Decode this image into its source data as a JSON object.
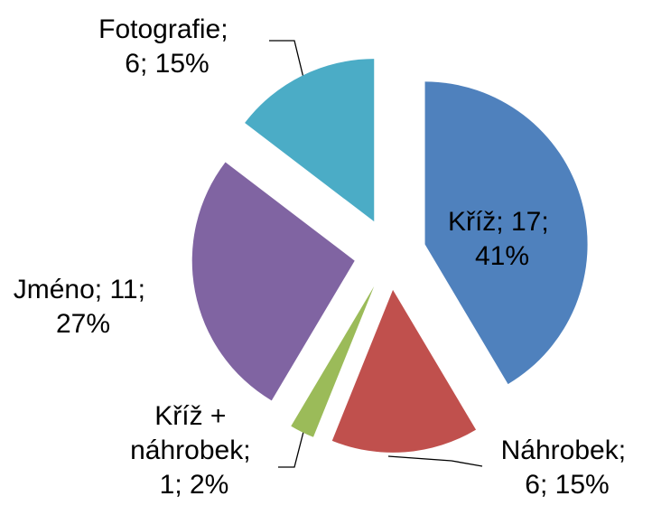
{
  "chart_data": {
    "type": "pie",
    "values": [
      17,
      6,
      1,
      11,
      6
    ],
    "value_labels": [
      "Kříž; 17; 41%",
      "Náhrobek; 6; 15%",
      "Kříž + náhrobek; 1; 2%",
      "Jméno; 11; 27%",
      "Fotografie; 6; 15%"
    ],
    "colors": [
      "#4f81bd",
      "#c0504d",
      "#9bbb59",
      "#8064a2",
      "#4bacc6"
    ],
    "exploded": true
  }
}
